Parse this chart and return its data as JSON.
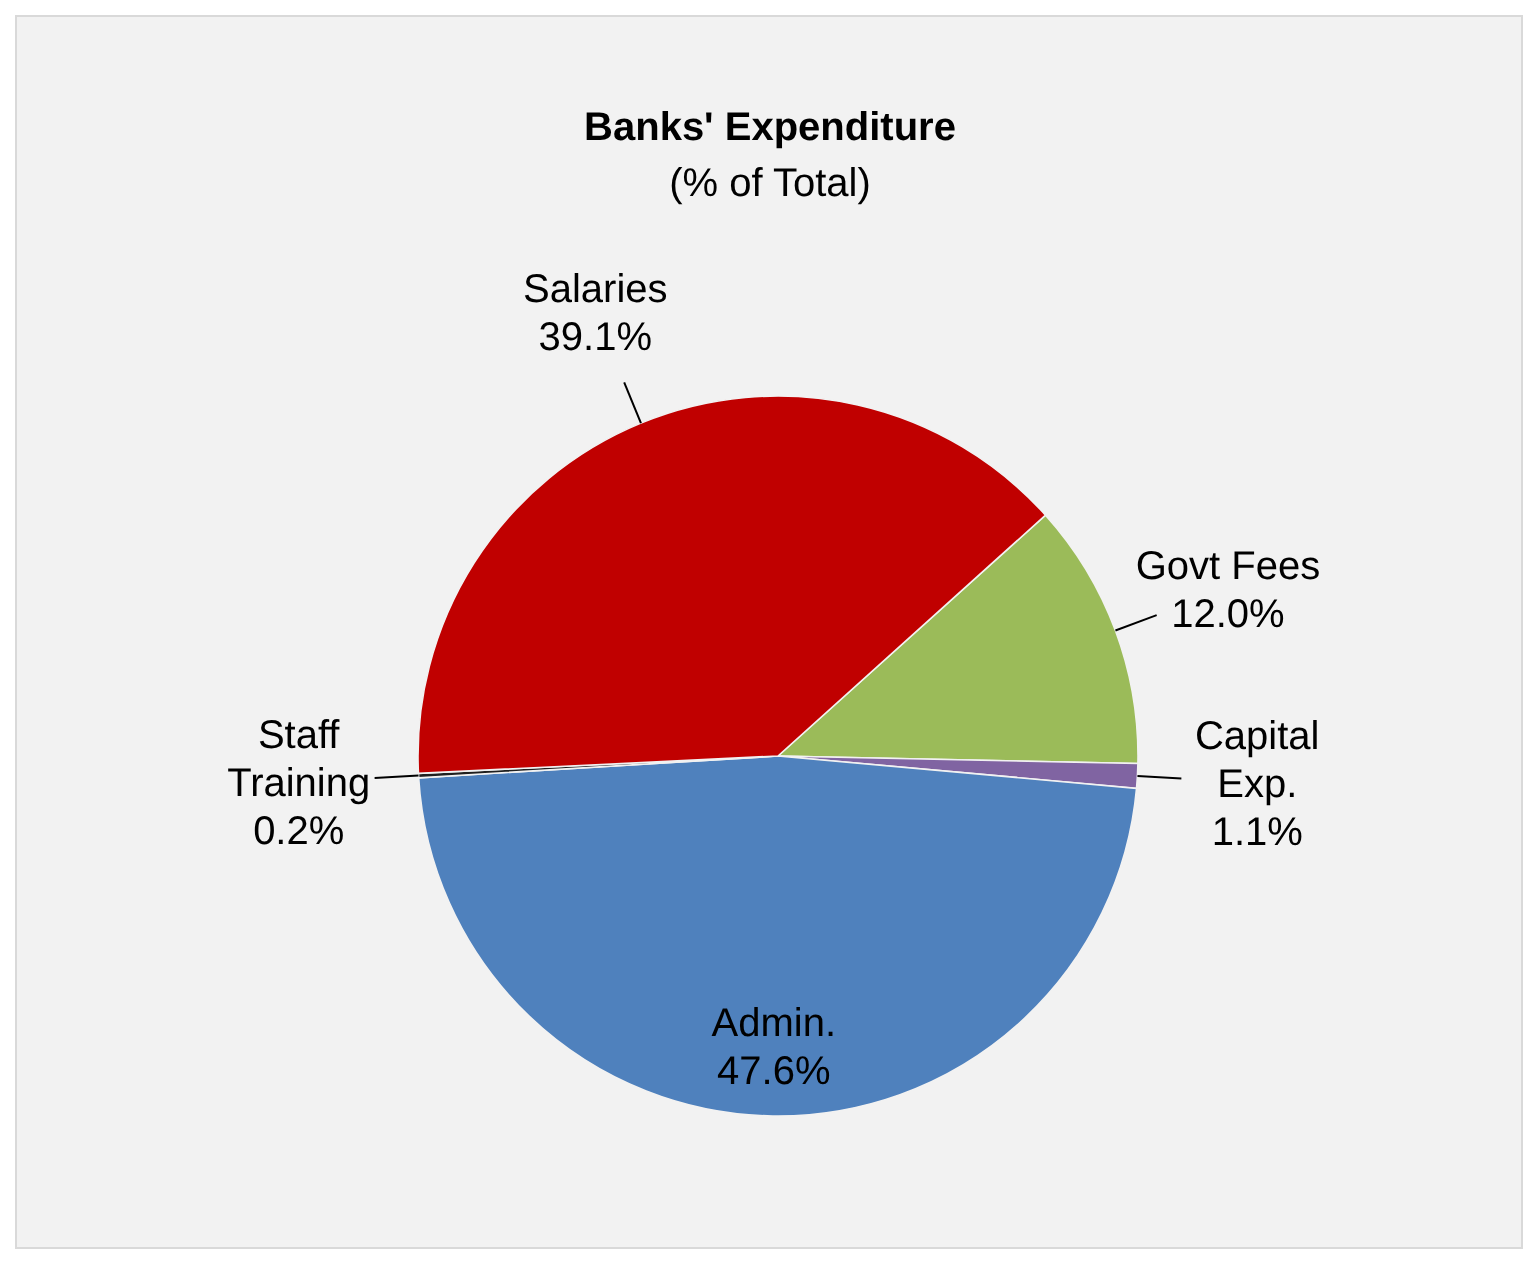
{
  "chart_data": {
    "type": "pie",
    "title": "Banks' Expenditure",
    "subtitle": "(% of Total)",
    "categories": [
      "Govt Fees",
      "Capital Exp.",
      "Admin.",
      "Staff Training",
      "Salaries"
    ],
    "values": [
      12.0,
      1.1,
      47.6,
      0.2,
      39.1
    ],
    "value_labels": [
      "12.0%",
      "1.1%",
      "47.6%",
      "0.2%",
      "39.1%"
    ],
    "colors": [
      "#9bbb59",
      "#8064a2",
      "#4f81bd",
      "#1f1f1f",
      "#c00000"
    ]
  }
}
